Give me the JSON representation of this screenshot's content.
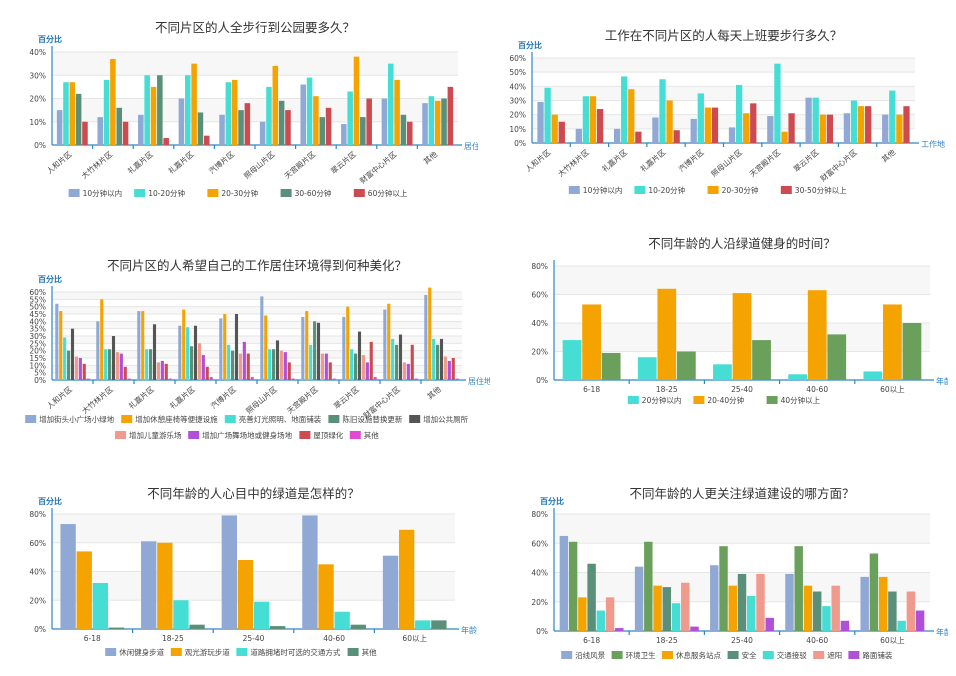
{
  "chart_data": [
    {
      "type": "bar",
      "title": "不同片区的人全步行到公园要多久？",
      "ylabel": "百分比",
      "xlabel": "居住地",
      "ylim": [
        0,
        40
      ],
      "yticks": [
        "0%",
        "10%",
        "20%",
        "30%",
        "40%"
      ],
      "categories": [
        "人和片区",
        "大竹林片区",
        "礼嘉片区",
        "礼嘉片区",
        "汽博片区",
        "照母山片区",
        "天宫殿片区",
        "翠云片区",
        "财富中心片区",
        "其他"
      ],
      "series": [
        {
          "name": "10分钟以内",
          "color": "#8fa8d4",
          "values": [
            15,
            12,
            13,
            20,
            13,
            10,
            26,
            9,
            20,
            18
          ]
        },
        {
          "name": "10-20分钟",
          "color": "#45ddd4",
          "values": [
            27,
            28,
            30,
            30,
            27,
            25,
            29,
            23,
            35,
            21
          ]
        },
        {
          "name": "20-30分钟",
          "color": "#f5a300",
          "values": [
            27,
            37,
            25,
            35,
            28,
            34,
            21,
            38,
            28,
            19
          ]
        },
        {
          "name": "30-60分钟",
          "color": "#5a8f79",
          "values": [
            22,
            16,
            30,
            14,
            15,
            19,
            12,
            12,
            13,
            20
          ]
        },
        {
          "name": "60分钟以上",
          "color": "#cd4a50",
          "values": [
            10,
            10,
            3,
            4,
            18,
            15,
            16,
            20,
            10,
            25
          ]
        }
      ]
    },
    {
      "type": "bar",
      "title": "工作在不同片区的人每天上班要步行多久？",
      "ylabel": "百分比",
      "xlabel": "工作地",
      "ylim": [
        0,
        60
      ],
      "yticks": [
        "0%",
        "10%",
        "20%",
        "30%",
        "40%",
        "50%",
        "60%"
      ],
      "categories": [
        "人和片区",
        "大竹林片区",
        "礼嘉片区",
        "礼嘉片区",
        "汽博片区",
        "照母山片区",
        "天宫殿片区",
        "翠云片区",
        "财富中心片区",
        "其他"
      ],
      "series": [
        {
          "name": "10分钟以内",
          "color": "#8fa8d4",
          "values": [
            29,
            10,
            10,
            18,
            17,
            11,
            19,
            32,
            21,
            20
          ]
        },
        {
          "name": "10-20分钟",
          "color": "#45ddd4",
          "values": [
            39,
            33,
            47,
            45,
            35,
            41,
            56,
            32,
            30,
            37
          ]
        },
        {
          "name": "20-30分钟",
          "color": "#f5a300",
          "values": [
            20,
            33,
            38,
            30,
            25,
            21,
            8,
            20,
            26,
            20
          ]
        },
        {
          "name": "30-50分钟以上",
          "color": "#cd4a50",
          "values": [
            15,
            24,
            8,
            9,
            25,
            28,
            21,
            20,
            26,
            26
          ]
        }
      ]
    },
    {
      "type": "bar",
      "title": "不同片区的人希望自己的工作居住环境得到何种美化？",
      "ylabel": "百分比",
      "xlabel": "居住地",
      "ylim": [
        0,
        60
      ],
      "yticks": [
        "0%",
        "5%",
        "10%",
        "15%",
        "20%",
        "25%",
        "30%",
        "35%",
        "40%",
        "45%",
        "50%",
        "55%",
        "60%"
      ],
      "categories": [
        "人和片区",
        "大竹林片区",
        "礼嘉片区",
        "礼嘉片区",
        "汽博片区",
        "照母山片区",
        "天宫殿片区",
        "翠云片区",
        "财富中心片区",
        "其他"
      ],
      "series": [
        {
          "name": "增加街头小广场小绿地",
          "color": "#8fa8d4",
          "values": [
            52,
            40,
            47,
            37,
            42,
            57,
            43,
            43,
            48,
            58
          ]
        },
        {
          "name": "增加休憩座椅等便捷设施",
          "color": "#f5a300",
          "values": [
            47,
            55,
            47,
            48,
            45,
            44,
            47,
            50,
            52,
            63
          ]
        },
        {
          "name": "亮善灯光照明、地面铺装",
          "color": "#45ddd4",
          "values": [
            29,
            21,
            21,
            36,
            24,
            21,
            24,
            21,
            28,
            28
          ]
        },
        {
          "name": "陈旧设施替换更新",
          "color": "#5a8f79",
          "values": [
            20,
            21,
            21,
            23,
            20,
            21,
            40,
            18,
            24,
            24
          ]
        },
        {
          "name": "增加公共厕所",
          "color": "#555555",
          "values": [
            35,
            30,
            38,
            37,
            45,
            27,
            39,
            33,
            31,
            28
          ]
        },
        {
          "name": "增加儿童游乐场",
          "color": "#ef9a8c",
          "values": [
            16,
            19,
            12,
            25,
            18,
            20,
            18,
            17,
            12,
            16
          ]
        },
        {
          "name": "增加广场舞场地或健身场地",
          "color": "#b04fd8",
          "values": [
            15,
            18,
            13,
            17,
            26,
            19,
            18,
            12,
            11,
            13
          ]
        },
        {
          "name": "屋顶绿化",
          "color": "#cd4a50",
          "values": [
            11,
            9,
            11,
            9,
            18,
            12,
            12,
            26,
            24,
            15
          ]
        },
        {
          "name": "其他",
          "color": "#e24ad4",
          "values": [
            1,
            1,
            1,
            2,
            2,
            1,
            1,
            2,
            1,
            1
          ]
        }
      ]
    },
    {
      "type": "bar",
      "title": "不同年龄的人沿绿道健身的时间？",
      "ylabel": "",
      "xlabel": "年龄",
      "ylim": [
        0,
        80
      ],
      "yticks": [
        "0%",
        "20%",
        "40%",
        "60%",
        "80%"
      ],
      "categories": [
        "6-18",
        "18-25",
        "25-40",
        "40-60",
        "60以上"
      ],
      "series": [
        {
          "name": "20分钟以内",
          "color": "#45ddd4",
          "values": [
            28,
            16,
            11,
            4,
            6
          ]
        },
        {
          "name": "20-40分钟",
          "color": "#f5a300",
          "values": [
            53,
            64,
            61,
            63,
            53
          ]
        },
        {
          "name": "40分钟以上",
          "color": "#6a9f5c",
          "values": [
            19,
            20,
            28,
            32,
            40
          ]
        }
      ]
    },
    {
      "type": "bar",
      "title": "不同年龄的人心目中的绿道是怎样的？",
      "ylabel": "百分比",
      "xlabel": "年龄",
      "ylim": [
        0,
        80
      ],
      "yticks": [
        "0%",
        "20%",
        "40%",
        "60%",
        "80%"
      ],
      "categories": [
        "6-18",
        "18-25",
        "25-40",
        "40-60",
        "60以上"
      ],
      "series": [
        {
          "name": "休闲健身步道",
          "color": "#8fa8d4",
          "values": [
            73,
            61,
            79,
            79,
            51
          ]
        },
        {
          "name": "观光游玩步道",
          "color": "#f5a300",
          "values": [
            54,
            60,
            48,
            45,
            69
          ]
        },
        {
          "name": "道路拥堵时可选的交通方式",
          "color": "#45ddd4",
          "values": [
            32,
            20,
            19,
            12,
            6
          ]
        },
        {
          "name": "其他",
          "color": "#5a8f79",
          "values": [
            1,
            3,
            2,
            3,
            6
          ]
        }
      ]
    },
    {
      "type": "bar",
      "title": "不同年龄的人更关注绿道建设的哪方面？",
      "ylabel": "百分比",
      "xlabel": "年龄",
      "ylim": [
        0,
        80
      ],
      "yticks": [
        "0%",
        "20%",
        "40%",
        "60%",
        "80%"
      ],
      "categories": [
        "6-18",
        "18-25",
        "25-40",
        "40-60",
        "60以上"
      ],
      "series": [
        {
          "name": "沿线风景",
          "color": "#8fa8d4",
          "values": [
            65,
            44,
            45,
            39,
            37
          ]
        },
        {
          "name": "环境卫生",
          "color": "#6a9f5c",
          "values": [
            61,
            61,
            58,
            58,
            53
          ]
        },
        {
          "name": "休息服务站点",
          "color": "#f5a300",
          "values": [
            23,
            31,
            31,
            31,
            37
          ]
        },
        {
          "name": "安全",
          "color": "#5a8f79",
          "values": [
            46,
            30,
            39,
            27,
            27
          ]
        },
        {
          "name": "交通接驳",
          "color": "#45ddd4",
          "values": [
            14,
            19,
            24,
            17,
            7
          ]
        },
        {
          "name": "遮阳",
          "color": "#ef9a8c",
          "values": [
            23,
            33,
            39,
            31,
            27
          ]
        },
        {
          "name": "路面铺装",
          "color": "#b04fd8",
          "values": [
            2,
            3,
            9,
            7,
            14
          ]
        }
      ]
    }
  ]
}
